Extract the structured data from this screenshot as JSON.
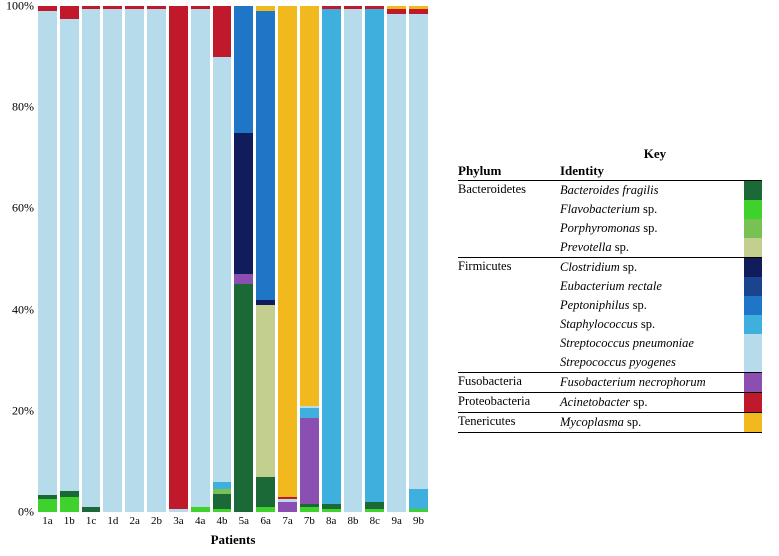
{
  "chart": {
    "type": "stacked-bar",
    "y_axis": {
      "min": 0,
      "max": 100,
      "ticks": [
        0,
        20,
        40,
        60,
        80,
        100
      ],
      "tick_suffix": "%"
    },
    "x_label": "Patients",
    "categories": [
      "1a",
      "1b",
      "1c",
      "1d",
      "2a",
      "2b",
      "3a",
      "4a",
      "4b",
      "5a",
      "6a",
      "7a",
      "7b",
      "8a",
      "8b",
      "8c",
      "9a",
      "9b"
    ],
    "series_order_bottom_to_top": [
      "Flavobacterium",
      "Bacteroides_fragilis",
      "Porphyromonas",
      "Prevotella",
      "Fusobacterium_necrophorum",
      "Clostridium",
      "Eubacterium_rectale",
      "Peptoniphilus",
      "Staphylococcus",
      "Streptococcus_pyogenes",
      "Streptococcus_pneumoniae",
      "Acinetobacter",
      "Mycoplasma"
    ],
    "colors": {
      "Bacteroides_fragilis": "#1b6937",
      "Flavobacterium": "#3fd22d",
      "Porphyromonas": "#78c153",
      "Prevotella": "#c2cf8f",
      "Clostridium": "#101c5c",
      "Eubacterium_rectale": "#1a448e",
      "Peptoniphilus": "#1f76c7",
      "Staphylococcus": "#3fafdd",
      "Streptococcus_pneumoniae": "#b6dbeb",
      "Streptococcus_pyogenes": "#b6dbeb",
      "Fusobacterium_necrophorum": "#8a4fb0",
      "Acinetobacter": "#c0192b",
      "Mycoplasma": "#f2b91f"
    },
    "data": {
      "1a": {
        "Flavobacterium": 2.5,
        "Bacteroides_fragilis": 0.8,
        "Streptococcus_pneumoniae": 95.7,
        "Acinetobacter": 1
      },
      "1b": {
        "Flavobacterium": 3,
        "Bacteroides_fragilis": 1.2,
        "Streptococcus_pneumoniae": 93.3,
        "Acinetobacter": 2.5
      },
      "1c": {
        "Bacteroides_fragilis": 1,
        "Streptococcus_pneumoniae": 98.5,
        "Acinetobacter": 0.5
      },
      "1d": {
        "Streptococcus_pneumoniae": 99.5,
        "Acinetobacter": 0.5
      },
      "2a": {
        "Streptococcus_pneumoniae": 99.5,
        "Acinetobacter": 0.5
      },
      "2b": {
        "Streptococcus_pneumoniae": 99.5,
        "Acinetobacter": 0.5
      },
      "3a": {
        "Streptococcus_pneumoniae": 0.5,
        "Acinetobacter": 99.5
      },
      "4a": {
        "Flavobacterium": 1,
        "Streptococcus_pneumoniae": 98.5,
        "Acinetobacter": 0.5
      },
      "4b": {
        "Flavobacterium": 0.5,
        "Bacteroides_fragilis": 3,
        "Porphyromonas": 1,
        "Staphylococcus": 1.5,
        "Streptococcus_pneumoniae": 84,
        "Acinetobacter": 10
      },
      "5a": {
        "Bacteroides_fragilis": 45,
        "Fusobacterium_necrophorum": 2,
        "Clostridium": 28,
        "Peptoniphilus": 25
      },
      "6a": {
        "Flavobacterium": 1,
        "Bacteroides_fragilis": 6,
        "Prevotella": 34,
        "Clostridium": 1,
        "Peptoniphilus": 57,
        "Mycoplasma": 1
      },
      "7a": {
        "Fusobacterium_necrophorum": 2,
        "Streptococcus_pneumoniae": 0.5,
        "Mycoplasma": 97,
        "Acinetobacter": 0.5
      },
      "7b": {
        "Flavobacterium": 1,
        "Bacteroides_fragilis": 0.5,
        "Fusobacterium_necrophorum": 17,
        "Staphylococcus": 2,
        "Streptococcus_pneumoniae": 0.5,
        "Mycoplasma": 79
      },
      "8a": {
        "Flavobacterium": 0.5,
        "Bacteroides_fragilis": 1,
        "Staphylococcus": 98,
        "Acinetobacter": 0.5
      },
      "8b": {
        "Streptococcus_pneumoniae": 99.5,
        "Acinetobacter": 0.5
      },
      "8c": {
        "Flavobacterium": 0.5,
        "Bacteroides_fragilis": 1.5,
        "Staphylococcus": 97.5,
        "Acinetobacter": 0.5
      },
      "9a": {
        "Streptococcus_pneumoniae": 98.5,
        "Acinetobacter": 1,
        "Mycoplasma": 0.5
      },
      "9b": {
        "Flavobacterium": 0.5,
        "Staphylococcus": 4,
        "Streptococcus_pneumoniae": 94,
        "Acinetobacter": 1,
        "Mycoplasma": 0.5
      }
    }
  },
  "legend": {
    "title": "Key",
    "headers": {
      "phylum": "Phylum",
      "identity": "Identity"
    },
    "rows": [
      {
        "phylum": "Bacteroidetes",
        "species": [
          {
            "key": "Bacteroides_fragilis",
            "label_html": "Bacteroides fragilis"
          },
          {
            "key": "Flavobacterium",
            "label_html": "Flavobacterium <span class=plain>sp.</span>"
          },
          {
            "key": "Porphyromonas",
            "label_html": "Porphyromonas <span class=plain>sp.</span>"
          },
          {
            "key": "Prevotella",
            "label_html": "Prevotella <span class=plain>sp.</span>"
          }
        ]
      },
      {
        "phylum": "Firmicutes",
        "species": [
          {
            "key": "Clostridium",
            "label_html": "Clostridium <span class=plain>sp.</span>"
          },
          {
            "key": "Eubacterium_rectale",
            "label_html": "Eubacterium rectale"
          },
          {
            "key": "Peptoniphilus",
            "label_html": "Peptoniphilus <span class=plain>sp.</span>"
          },
          {
            "key": "Staphylococcus",
            "label_html": "Staphylococcus <span class=plain>sp.</span>"
          },
          {
            "key": "Streptococcus_pneumoniae",
            "label_html": "Streptococcus pneumoniae"
          },
          {
            "key": "Streptococcus_pyogenes",
            "label_html": "Strepococcus pyogenes"
          }
        ]
      },
      {
        "phylum": "Fusobacteria",
        "species": [
          {
            "key": "Fusobacterium_necrophorum",
            "label_html": "Fusobacterium necrophorum"
          }
        ]
      },
      {
        "phylum": "Proteobacteria",
        "species": [
          {
            "key": "Acinetobacter",
            "label_html": "Acinetobacter <span class=plain>sp.</span>"
          }
        ]
      },
      {
        "phylum": "Tenericutes",
        "species": [
          {
            "key": "Mycoplasma",
            "label_html": "Mycoplasma <span class=plain>sp.</span>"
          }
        ]
      }
    ]
  }
}
